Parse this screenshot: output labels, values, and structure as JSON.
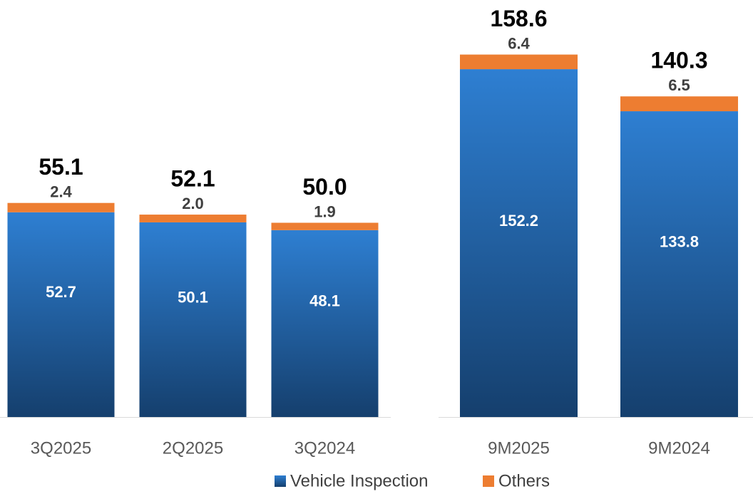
{
  "chart_data": [
    {
      "type": "bar",
      "stacked": true,
      "categories": [
        "3Q2025",
        "2Q2025",
        "3Q2024"
      ],
      "series": [
        {
          "name": "Vehicle Inspection",
          "color": "#1f5fa8",
          "values": [
            52.7,
            50.1,
            48.1
          ],
          "value_labels": [
            "52.7",
            "50.1",
            "48.1"
          ]
        },
        {
          "name": "Others",
          "color": "#ed7d31",
          "values": [
            2.4,
            2.0,
            1.9
          ],
          "value_labels": [
            "2.4",
            "2.0",
            "1.9"
          ]
        }
      ],
      "totals": [
        55.1,
        52.1,
        50.0
      ],
      "total_labels": [
        "55.1",
        "52.1",
        "50.0"
      ],
      "ylim": [
        0,
        100
      ]
    },
    {
      "type": "bar",
      "stacked": true,
      "categories": [
        "9M2025",
        "9M2024"
      ],
      "series": [
        {
          "color": "#1f5fa8",
          "values": [
            152.2,
            133.8
          ],
          "value_labels": [
            "152.2",
            "133.8"
          ]
        },
        {
          "color": "#ed7d31",
          "values": [
            6.4,
            6.5
          ],
          "value_labels": [
            "6.4",
            "6.5"
          ]
        }
      ],
      "totals": [
        158.6,
        140.3
      ],
      "total_labels": [
        "158.6",
        "140.3"
      ],
      "ylim": [
        0,
        170
      ]
    }
  ]
}
